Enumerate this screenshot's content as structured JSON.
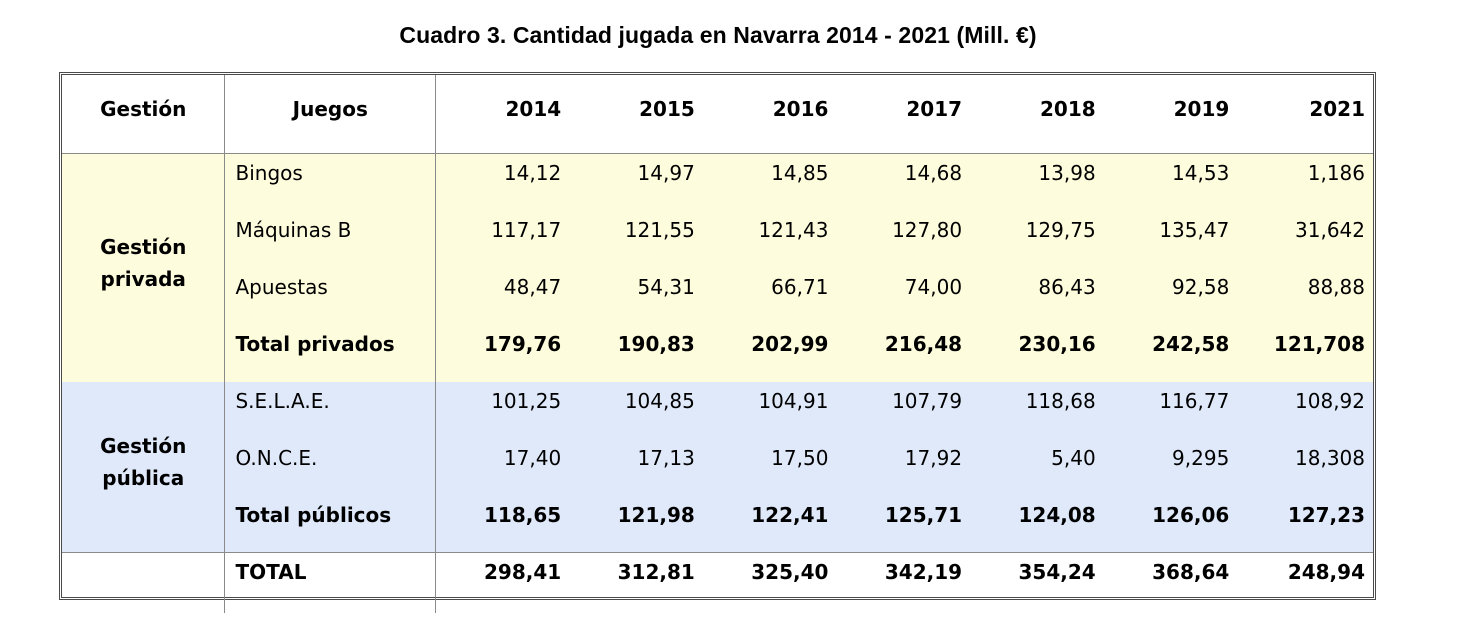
{
  "title": "Cuadro 3. Cantidad jugada en Navarra 2014 - 2021 (Mill. €)",
  "headers": {
    "gestion": "Gestión",
    "juegos": "Juegos",
    "years": [
      "2014",
      "2015",
      "2016",
      "2017",
      "2018",
      "2019",
      "2021"
    ]
  },
  "groups": {
    "privada": {
      "label_line1": "Gestión",
      "label_line2": "privada",
      "rows": [
        {
          "name": "Bingos",
          "values": [
            "14,12",
            "14,97",
            "14,85",
            "14,68",
            "13,98",
            "14,53",
            "1,186"
          ]
        },
        {
          "name": "Máquinas B",
          "values": [
            "117,17",
            "121,55",
            "121,43",
            "127,80",
            "129,75",
            "135,47",
            "31,642"
          ]
        },
        {
          "name": "Apuestas",
          "values": [
            "48,47",
            "54,31",
            "66,71",
            "74,00",
            "86,43",
            "92,58",
            "88,88"
          ]
        },
        {
          "name": "Total privados",
          "values": [
            "179,76",
            "190,83",
            "202,99",
            "216,48",
            "230,16",
            "242,58",
            "121,708"
          ]
        }
      ]
    },
    "publica": {
      "label_line1": "Gestión",
      "label_line2": "pública",
      "rows": [
        {
          "name": "S.E.L.A.E.",
          "values": [
            "101,25",
            "104,85",
            "104,91",
            "107,79",
            "118,68",
            "116,77",
            "108,92"
          ]
        },
        {
          "name": "O.N.C.E.",
          "values": [
            "17,40",
            "17,13",
            "17,50",
            "17,92",
            "5,40",
            "9,295",
            "18,308"
          ]
        },
        {
          "name": "Total públicos",
          "values": [
            "118,65",
            "121,98",
            "122,41",
            "125,71",
            "124,08",
            "126,06",
            "127,23"
          ]
        }
      ]
    }
  },
  "total": {
    "name": "TOTAL",
    "values": [
      "298,41",
      "312,81",
      "325,40",
      "342,19",
      "354,24",
      "368,64",
      "248,94"
    ]
  }
}
